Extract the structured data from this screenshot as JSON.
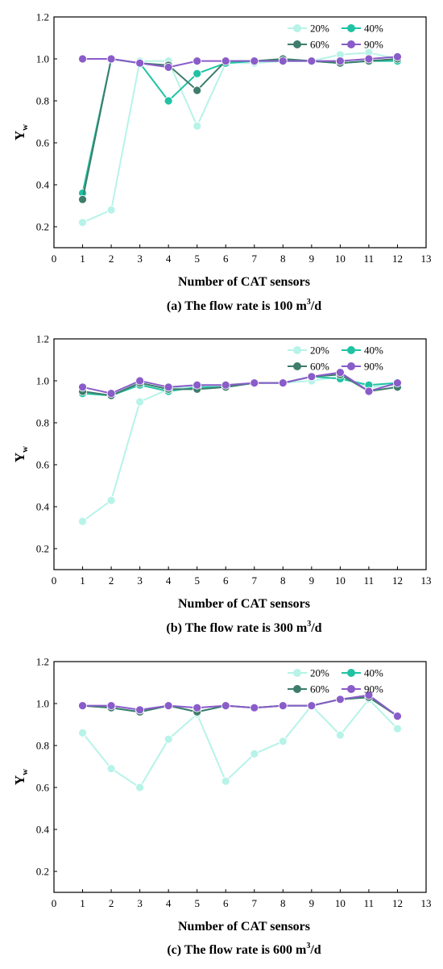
{
  "chart_data": [
    {
      "type": "line",
      "caption": {
        "pre": "(a) The flow rate is 100 m",
        "sup": "3",
        "post": "/d"
      },
      "xlabel": "Number of CAT sensors",
      "ylabel": {
        "main": "Y",
        "sub": "w"
      },
      "xlim": [
        0,
        13
      ],
      "ylim": [
        0.1,
        1.2
      ],
      "xticks": [
        0,
        1,
        2,
        3,
        4,
        5,
        6,
        7,
        8,
        9,
        10,
        11,
        12,
        13
      ],
      "yticks": [
        0.2,
        0.4,
        0.6,
        0.8,
        1.0,
        1.2
      ],
      "ytick_labels": [
        "0.2",
        "0.4",
        "0.6",
        "0.8",
        "1.0",
        "1.2"
      ],
      "grid": false,
      "legend_position": "top-right",
      "x": [
        1,
        2,
        3,
        4,
        5,
        6,
        7,
        8,
        9,
        10,
        11,
        12
      ],
      "series": [
        {
          "name": "20%",
          "color": "#b7f3e8",
          "values": [
            0.22,
            0.28,
            0.99,
            0.99,
            0.68,
            0.98,
            0.98,
            0.99,
            0.99,
            1.02,
            1.03,
            1.0
          ]
        },
        {
          "name": "40%",
          "color": "#1fc3a3",
          "values": [
            0.36,
            1.0,
            0.98,
            0.8,
            0.93,
            0.98,
            0.99,
            0.99,
            0.99,
            0.98,
            0.99,
            0.99
          ]
        },
        {
          "name": "60%",
          "color": "#3e7c6c",
          "values": [
            0.33,
            1.0,
            0.98,
            0.97,
            0.85,
            0.99,
            0.99,
            1.0,
            0.99,
            0.98,
            0.99,
            1.0
          ]
        },
        {
          "name": "90%",
          "color": "#8a5cc9",
          "values": [
            1.0,
            1.0,
            0.98,
            0.96,
            0.99,
            0.99,
            0.99,
            0.99,
            0.99,
            0.99,
            1.0,
            1.01
          ]
        }
      ]
    },
    {
      "type": "line",
      "caption": {
        "pre": "(b) The flow rate is 300 m",
        "sup": "3",
        "post": "/d"
      },
      "xlabel": "Number of CAT sensors",
      "ylabel": {
        "main": "Y",
        "sub": "w"
      },
      "xlim": [
        0,
        13
      ],
      "ylim": [
        0.1,
        1.2
      ],
      "xticks": [
        0,
        1,
        2,
        3,
        4,
        5,
        6,
        7,
        8,
        9,
        10,
        11,
        12,
        13
      ],
      "yticks": [
        0.2,
        0.4,
        0.6,
        0.8,
        1.0,
        1.2
      ],
      "ytick_labels": [
        "0.2",
        "0.4",
        "0.6",
        "0.8",
        "1.0",
        "1.2"
      ],
      "grid": false,
      "legend_position": "top-right",
      "x": [
        1,
        2,
        3,
        4,
        5,
        6,
        7,
        8,
        9,
        10,
        11,
        12
      ],
      "series": [
        {
          "name": "20%",
          "color": "#b7f3e8",
          "values": [
            0.33,
            0.43,
            0.9,
            0.96,
            0.98,
            0.98,
            0.99,
            0.99,
            1.0,
            1.02,
            0.97,
            0.98
          ]
        },
        {
          "name": "40%",
          "color": "#1fc3a3",
          "values": [
            0.94,
            0.93,
            0.98,
            0.95,
            0.97,
            0.97,
            0.99,
            0.99,
            1.02,
            1.01,
            0.98,
            0.99
          ]
        },
        {
          "name": "60%",
          "color": "#3e7c6c",
          "values": [
            0.95,
            0.93,
            0.99,
            0.96,
            0.96,
            0.97,
            0.99,
            0.99,
            1.02,
            1.03,
            0.95,
            0.97
          ]
        },
        {
          "name": "90%",
          "color": "#8a5cc9",
          "values": [
            0.97,
            0.94,
            1.0,
            0.97,
            0.98,
            0.98,
            0.99,
            0.99,
            1.02,
            1.04,
            0.95,
            0.99
          ]
        }
      ]
    },
    {
      "type": "line",
      "caption": {
        "pre": "(c) The flow rate is 600 m",
        "sup": "3",
        "post": "/d"
      },
      "xlabel": "Number of CAT sensors",
      "ylabel": {
        "main": "Y",
        "sub": "w"
      },
      "xlim": [
        0,
        13
      ],
      "ylim": [
        0.1,
        1.2
      ],
      "xticks": [
        0,
        1,
        2,
        3,
        4,
        5,
        6,
        7,
        8,
        9,
        10,
        11,
        12,
        13
      ],
      "yticks": [
        0.2,
        0.4,
        0.6,
        0.8,
        1.0,
        1.2
      ],
      "ytick_labels": [
        "0.2",
        "0.4",
        "0.6",
        "0.8",
        "1.0",
        "1.2"
      ],
      "grid": false,
      "legend_position": "top-right",
      "x": [
        1,
        2,
        3,
        4,
        5,
        6,
        7,
        8,
        9,
        10,
        11,
        12
      ],
      "series": [
        {
          "name": "20%",
          "color": "#b7f3e8",
          "values": [
            0.86,
            0.69,
            0.6,
            0.83,
            0.95,
            0.63,
            0.76,
            0.82,
            0.99,
            0.85,
            1.02,
            0.88
          ]
        },
        {
          "name": "40%",
          "color": "#1fc3a3",
          "values": [
            0.99,
            0.98,
            0.96,
            0.99,
            0.96,
            0.99,
            0.98,
            0.99,
            0.99,
            1.02,
            1.03,
            0.94
          ]
        },
        {
          "name": "60%",
          "color": "#3e7c6c",
          "values": [
            0.99,
            0.98,
            0.96,
            0.99,
            0.96,
            0.99,
            0.98,
            0.99,
            0.99,
            1.02,
            1.03,
            0.94
          ]
        },
        {
          "name": "90%",
          "color": "#8a5cc9",
          "values": [
            0.99,
            0.99,
            0.97,
            0.99,
            0.98,
            0.99,
            0.98,
            0.99,
            0.99,
            1.02,
            1.04,
            0.94
          ]
        }
      ]
    }
  ]
}
